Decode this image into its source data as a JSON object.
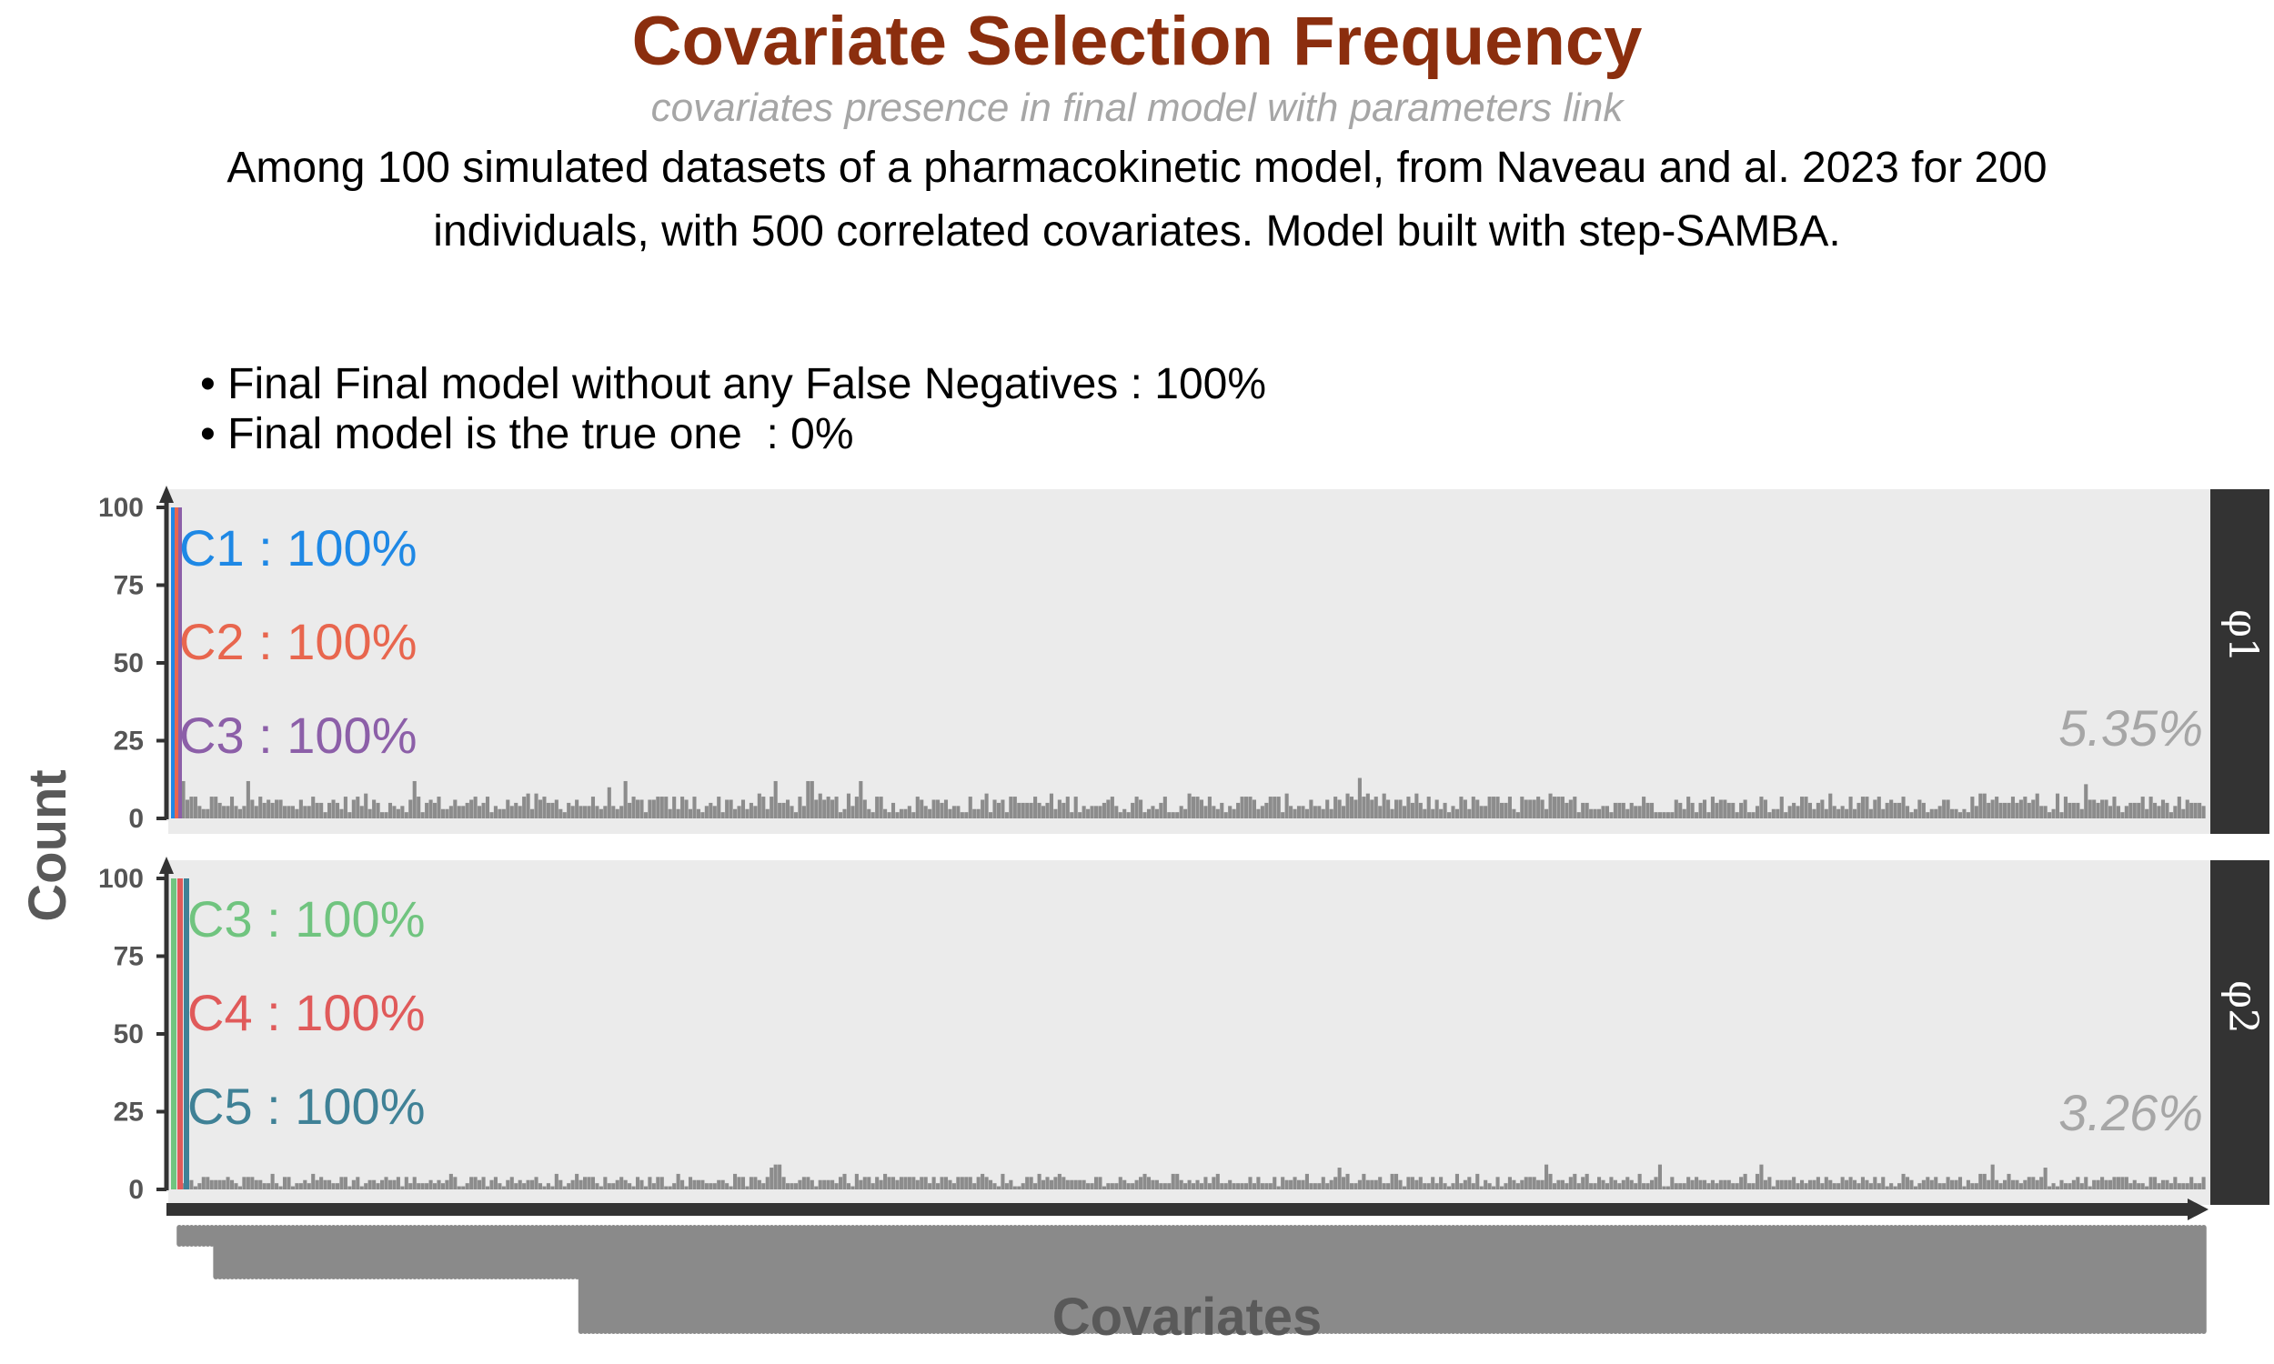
{
  "title": "Covariate Selection Frequency",
  "subtitle": "covariates presence in final model with parameters link",
  "caption_line1": "Among 100 simulated datasets of a pharmacokinetic model, from Naveau and al. 2023 for 200",
  "caption_line2": "individuals, with 500 correlated covariates. Model built with step-SAMBA.",
  "bullets": [
    "• Final Final model without any False Negatives : 100%",
    "• Final model is the true one  : 0%"
  ],
  "colors": {
    "title": "#8B2E0E",
    "panel_bg": "#ebebeb",
    "strip_bg": "#333333",
    "bars": "#8c8c8c"
  },
  "chart_data": {
    "type": "bar",
    "xlabel": "Covariates",
    "ylabel": "Count",
    "ylim": [
      0,
      100
    ],
    "yticks": [
      0,
      25,
      50,
      75,
      100
    ],
    "n_covariates": 500,
    "panels": [
      {
        "strip": "φ1",
        "other_percent": "5.35%",
        "highlights": [
          {
            "label": "C1 : 100%",
            "covariate": "C1",
            "value": 100,
            "color": "#1E88E5"
          },
          {
            "label": "C2 : 100%",
            "covariate": "C2",
            "value": 100,
            "color": "#E8664E"
          },
          {
            "label": "C3 : 100%",
            "covariate": "C3",
            "value": 100,
            "color": "#8C5FA8"
          }
        ],
        "mean_other": 5.35,
        "max_other": 13
      },
      {
        "strip": "φ2",
        "other_percent": "3.26%",
        "highlights": [
          {
            "label": "C3 : 100%",
            "covariate": "C3",
            "value": 100,
            "color": "#70C47F"
          },
          {
            "label": "C4 : 100%",
            "covariate": "C4",
            "value": 100,
            "color": "#E05A5A"
          },
          {
            "label": "C5 : 100%",
            "covariate": "C5",
            "value": 100,
            "color": "#3F8196"
          }
        ],
        "mean_other": 3.26,
        "max_other": 8
      }
    ]
  }
}
